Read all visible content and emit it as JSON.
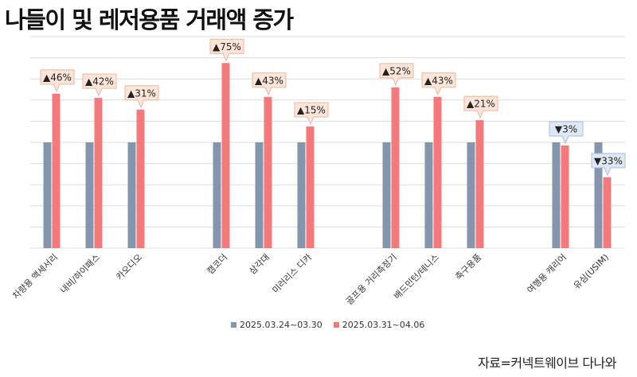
{
  "chart_data": {
    "type": "bar",
    "title": "나들이 및 레저용품 거래액 증가",
    "categories": [
      "차량용 액세서리",
      "내비/하이패스",
      "카오디오",
      "캠코더",
      "삼각대",
      "미러리스 디카",
      "골프용 거리측정기",
      "배드민턴/테니스",
      "축구용품",
      "여행용 캐리어",
      "유심(USIM)"
    ],
    "groups": [
      [
        0,
        1,
        2
      ],
      [
        3,
        4,
        5
      ],
      [
        6,
        7,
        8
      ],
      [
        9,
        10
      ]
    ],
    "series": [
      {
        "name": "2025.03.24~03.30",
        "values": [
          100,
          100,
          100,
          100,
          100,
          100,
          100,
          100,
          100,
          100,
          100
        ]
      },
      {
        "name": "2025.03.31~04.06",
        "values": [
          146,
          142,
          131,
          175,
          143,
          115,
          152,
          143,
          121,
          97,
          67
        ]
      }
    ],
    "change_labels": [
      "▲46%",
      "▲42%",
      "▲31%",
      "▲75%",
      "▲43%",
      "▲15%",
      "▲52%",
      "▲43%",
      "▲21%",
      "▼3%",
      "▼33%"
    ],
    "direction": [
      "up",
      "up",
      "up",
      "up",
      "up",
      "up",
      "up",
      "up",
      "up",
      "down",
      "down"
    ],
    "ylim": [
      0,
      200
    ],
    "grid": true,
    "legend_position": "bottom",
    "colors": {
      "series1": "#8496ad",
      "series2": "#f4797b",
      "up_box": "#fbe5d9",
      "up_border": "#e8b79d",
      "down_box": "#dde8f4",
      "down_border": "#a8bfd6",
      "grid": "#dcdcdc"
    }
  },
  "source": "자료=커넥트웨이브 다나와"
}
